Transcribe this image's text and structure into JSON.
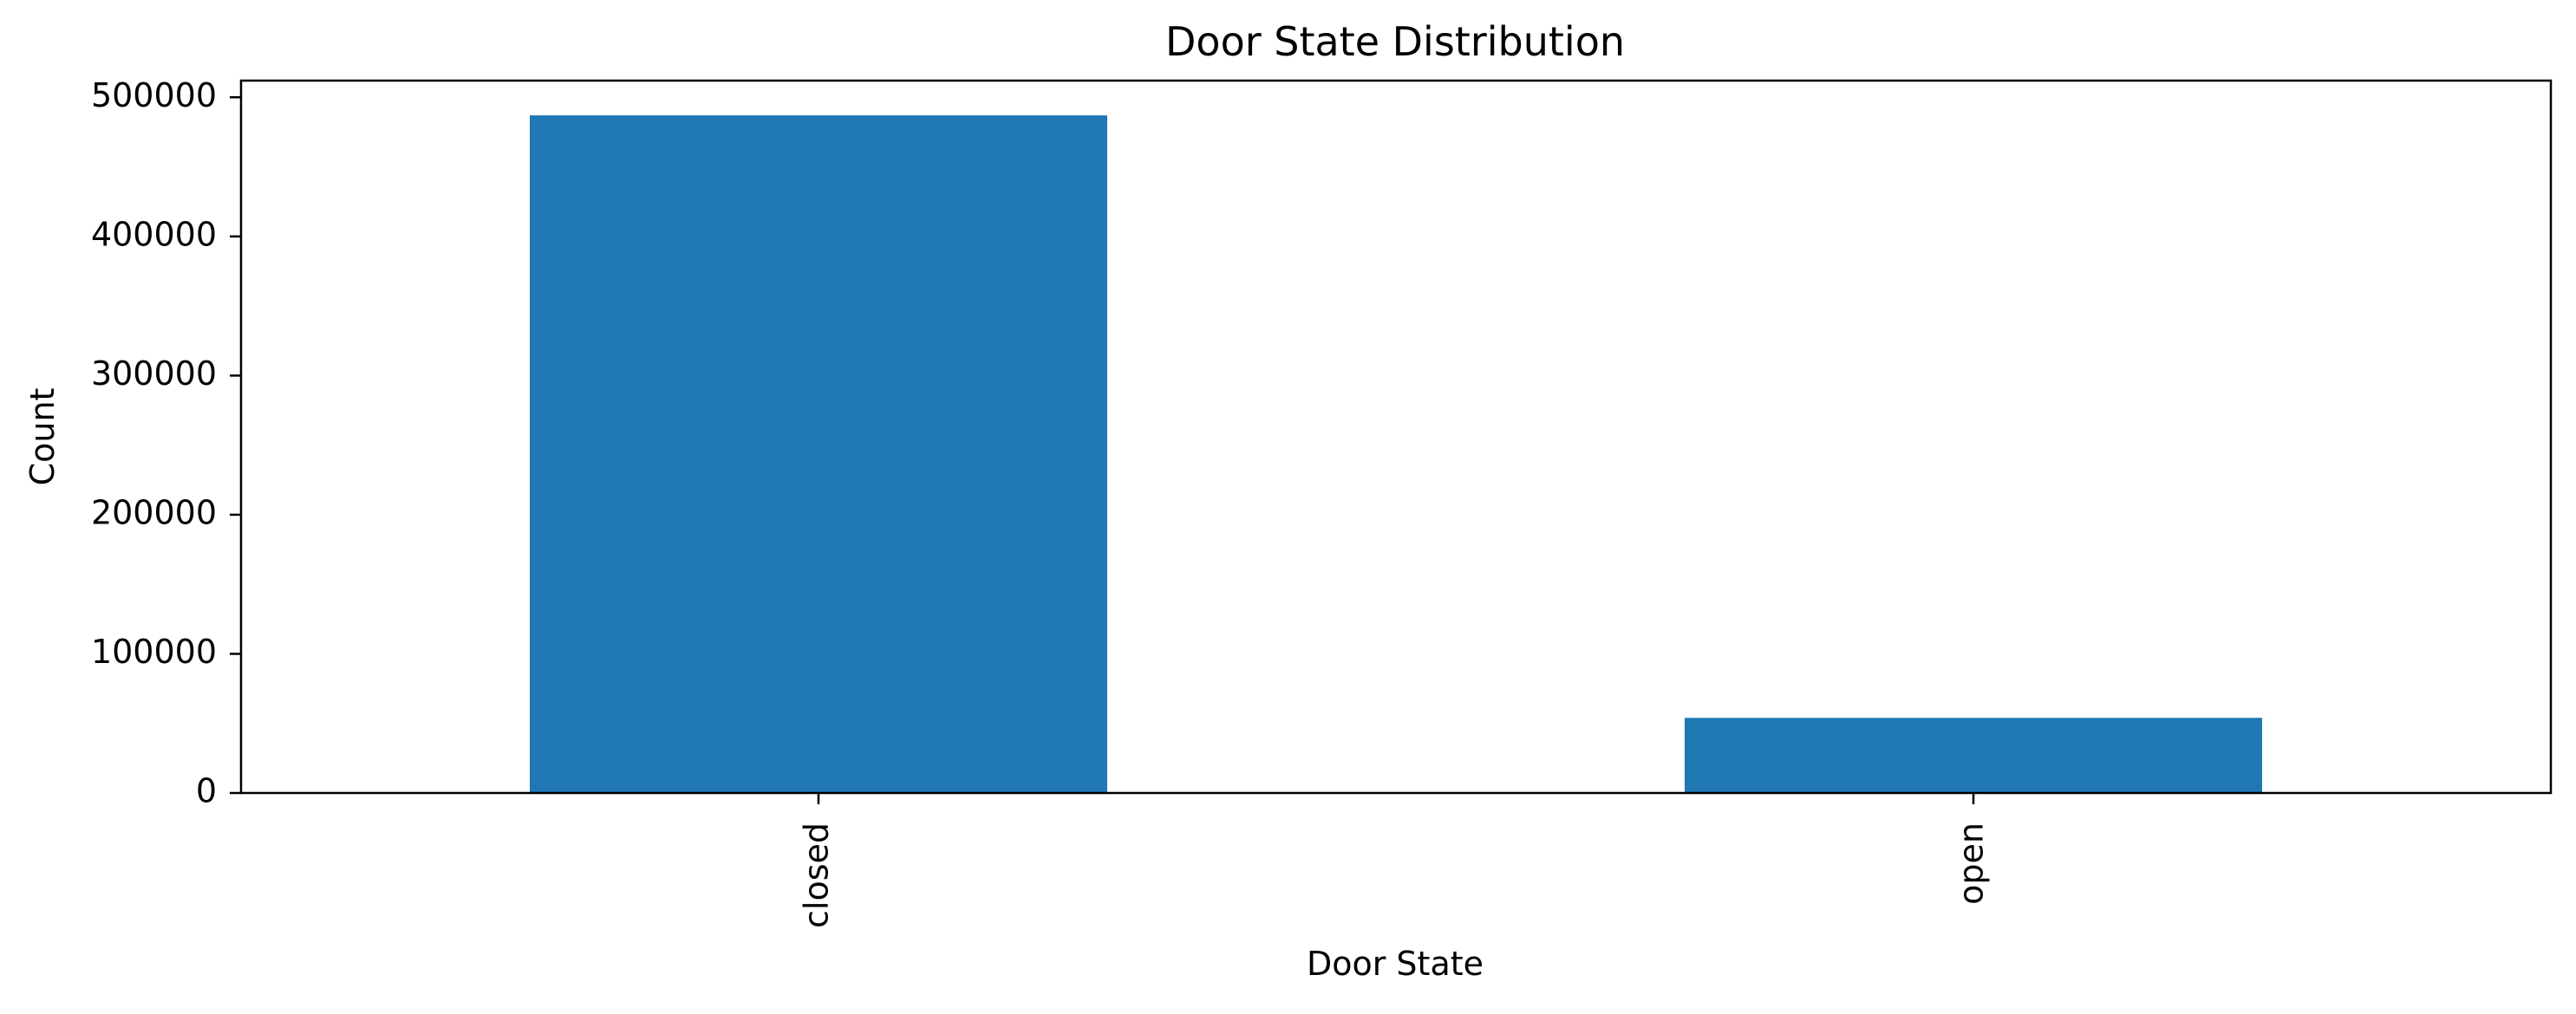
{
  "chart_data": {
    "type": "bar",
    "title": "Door State Distribution",
    "xlabel": "Door State",
    "ylabel": "Count",
    "categories": [
      "closed",
      "open"
    ],
    "values": [
      487000,
      54000
    ],
    "ylim": [
      0,
      512000
    ],
    "yticks": [
      0,
      100000,
      200000,
      300000,
      400000,
      500000
    ],
    "ytick_labels": [
      "0",
      "100000",
      "200000",
      "300000",
      "400000",
      "500000"
    ],
    "bar_color": "#1f77b4",
    "grid": false,
    "legend": "none"
  }
}
